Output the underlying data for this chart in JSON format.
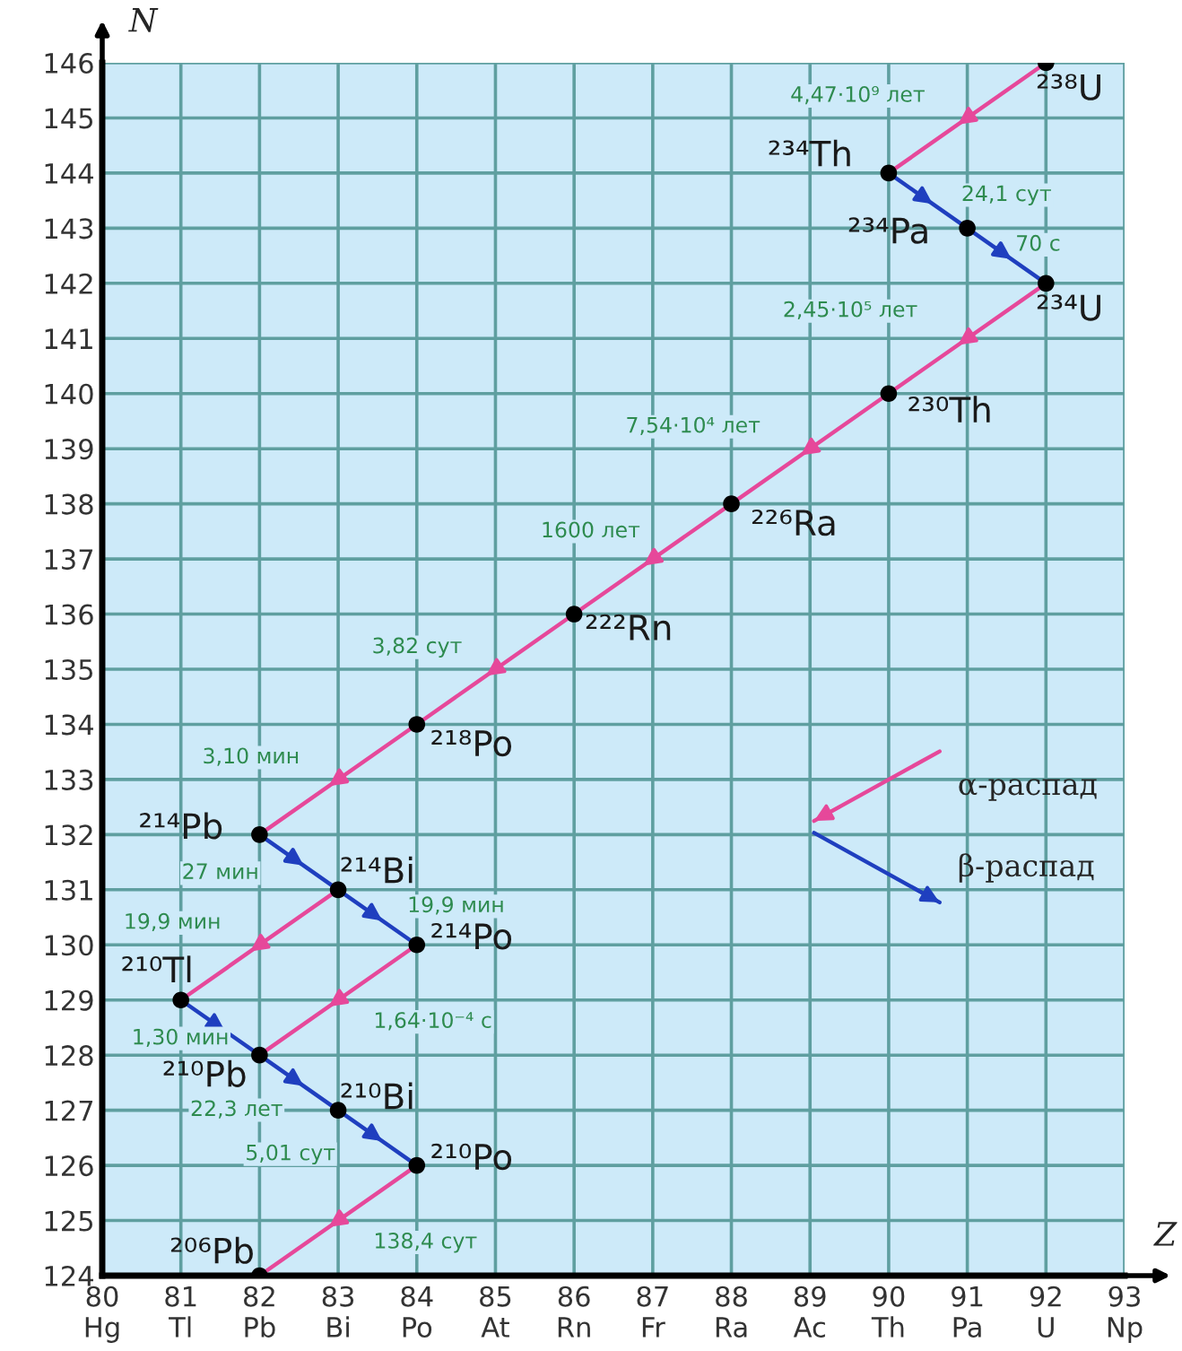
{
  "chart_data": {
    "type": "line",
    "xlabel": "Z",
    "ylabel": "N",
    "xlim": [
      80,
      93
    ],
    "xticks": [
      {
        "value": 80,
        "label": "80\nHg"
      },
      {
        "value": 81,
        "label": "81\nTl"
      },
      {
        "value": 82,
        "label": "82\nPb"
      },
      {
        "value": 83,
        "label": "83\nBi"
      },
      {
        "value": 84,
        "label": "84\nPo"
      },
      {
        "value": 85,
        "label": "85\nAt"
      },
      {
        "value": 86,
        "label": "86\nRn"
      },
      {
        "value": 87,
        "label": "87\nFr"
      },
      {
        "value": 88,
        "label": "88\nRa"
      },
      {
        "value": 89,
        "label": "89\nAc"
      },
      {
        "value": 90,
        "label": "90\nTh"
      },
      {
        "value": 91,
        "label": "91\nPa"
      },
      {
        "value": 92,
        "label": "92\nU"
      },
      {
        "value": 93,
        "label": "93\nNp"
      }
    ],
    "ylim": [
      124,
      146
    ],
    "yticks": [
      124,
      125,
      126,
      127,
      128,
      129,
      130,
      131,
      132,
      133,
      134,
      135,
      136,
      137,
      138,
      139,
      140,
      141,
      142,
      143,
      144,
      145,
      146
    ],
    "grid": true,
    "legend": "right",
    "series": [
      {
        "name": "α-распад",
        "color": "#e6489a",
        "x": [
          92,
          90
        ],
        "values": [
          146,
          144
        ]
      },
      {
        "color": "#e6489a",
        "x": [
          92,
          90,
          88,
          86,
          84,
          82
        ],
        "values": [
          142,
          140,
          138,
          136,
          134,
          132
        ]
      },
      {
        "color": "#e6489a",
        "x": [
          83,
          81
        ],
        "values": [
          131,
          129
        ]
      },
      {
        "color": "#e6489a",
        "x": [
          84,
          82
        ],
        "values": [
          130,
          128
        ]
      },
      {
        "color": "#e6489a",
        "x": [
          84,
          82
        ],
        "values": [
          126,
          124
        ]
      },
      {
        "name": "β-распад",
        "color": "#1f3fbf",
        "x": [
          90,
          91,
          92
        ],
        "values": [
          144,
          143,
          142
        ]
      },
      {
        "color": "#1f3fbf",
        "x": [
          82,
          83,
          84
        ],
        "values": [
          132,
          131,
          130
        ]
      },
      {
        "color": "#1f3fbf",
        "x": [
          81,
          82,
          83,
          84
        ],
        "values": [
          129,
          128,
          127,
          126
        ]
      },
      {
        "type": "scatter",
        "color": "#000000",
        "marker": "circle",
        "x": [
          92,
          90,
          91,
          92,
          90,
          88,
          86,
          84,
          82,
          83,
          84,
          81,
          82,
          83,
          84,
          82
        ],
        "values": [
          146,
          144,
          143,
          142,
          140,
          138,
          136,
          134,
          132,
          131,
          130,
          129,
          128,
          127,
          126,
          124
        ]
      }
    ],
    "annotations": [
      {
        "text": "²³⁸U",
        "x": 92,
        "y": 146
      },
      {
        "text": "²³⁴Th",
        "x": 90,
        "y": 144
      },
      {
        "text": "²³⁴Pa",
        "x": 91,
        "y": 143
      },
      {
        "text": "²³⁴U",
        "x": 92,
        "y": 142
      },
      {
        "text": "²³⁰Th",
        "x": 90,
        "y": 140
      },
      {
        "text": "²²⁶Ra",
        "x": 88,
        "y": 138
      },
      {
        "text": "²²²Rn",
        "x": 86,
        "y": 136
      },
      {
        "text": "²¹⁸Po",
        "x": 84,
        "y": 134
      },
      {
        "text": "²¹⁴Pb",
        "x": 82,
        "y": 132
      },
      {
        "text": "²¹⁴Bi",
        "x": 83,
        "y": 131
      },
      {
        "text": "²¹⁴Po",
        "x": 84,
        "y": 130
      },
      {
        "text": "²¹⁰Tl",
        "x": 81,
        "y": 129
      },
      {
        "text": "²¹⁰Pb",
        "x": 82,
        "y": 128
      },
      {
        "text": "²¹⁰Bi",
        "x": 83,
        "y": 127
      },
      {
        "text": "²¹⁰Po",
        "x": 84,
        "y": 126
      },
      {
        "text": "²⁰⁶Pb",
        "x": 82,
        "y": 124
      },
      {
        "text": "4,47·10⁹ лет",
        "x": 91,
        "y": 145
      },
      {
        "text": "24,1 сут",
        "x": 90.5,
        "y": 143.5
      },
      {
        "text": "70 с",
        "x": 91.5,
        "y": 142.5
      },
      {
        "text": "2,45·10⁵ лет",
        "x": 91,
        "y": 141
      },
      {
        "text": "7,54·10⁴ лет",
        "x": 89,
        "y": 139
      },
      {
        "text": "1600 лет",
        "x": 87,
        "y": 137
      },
      {
        "text": "3,82 сут",
        "x": 85,
        "y": 135
      },
      {
        "text": "3,10 мин",
        "x": 83,
        "y": 133
      },
      {
        "text": "27 мин",
        "x": 82.5,
        "y": 131.5
      },
      {
        "text": "19,9 мин",
        "x": 83.5,
        "y": 130.5
      },
      {
        "text": "19,9 мин",
        "x": 82,
        "y": 130
      },
      {
        "text": "1,64·10⁻⁴ с",
        "x": 83,
        "y": 129
      },
      {
        "text": "1,30 мин",
        "x": 81.5,
        "y": 128.5
      },
      {
        "text": "22,3 лет",
        "x": 82.5,
        "y": 127.5
      },
      {
        "text": "5,01 сут",
        "x": 83.5,
        "y": 126.5
      },
      {
        "text": "138,4 сут",
        "x": 83,
        "y": 125
      }
    ]
  }
}
